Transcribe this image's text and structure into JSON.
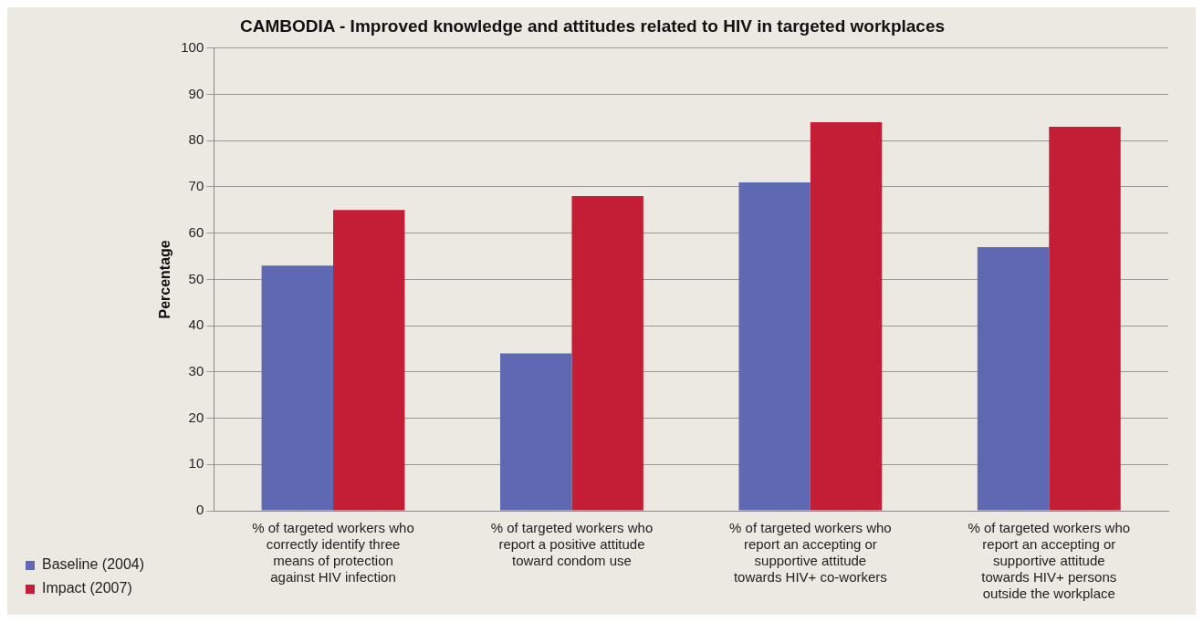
{
  "chart_data": {
    "type": "bar",
    "title": "CAMBODIA - Improved knowledge and attitudes related to HIV in targeted workplaces",
    "ylabel": "Percentage",
    "categories": [
      "% of targeted workers who correctly identify three means of protection against HIV infection",
      "% of targeted workers who report a positive attitude toward condom use",
      "% of targeted workers who report an accepting or supportive attitude towards HIV+ co-workers",
      "% of targeted workers who report an accepting or supportive attitude towards HIV+ persons outside the workplace"
    ],
    "series": [
      {
        "name": "Baseline (2004)",
        "color": "#5f68b3",
        "values": [
          53,
          34,
          71,
          57
        ]
      },
      {
        "name": "Impact (2007)",
        "color": "#c41e36",
        "values": [
          65,
          68,
          84,
          83
        ]
      }
    ],
    "ylim": [
      0,
      100
    ],
    "yticks": [
      0,
      10,
      20,
      30,
      40,
      50,
      60,
      70,
      80,
      90,
      100
    ],
    "grid": "y",
    "legend": "bottom left"
  }
}
